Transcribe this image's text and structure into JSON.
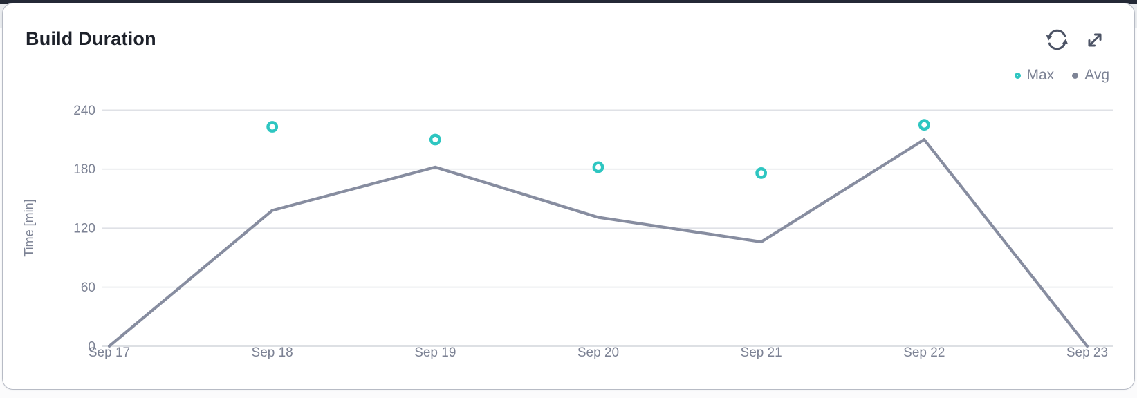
{
  "header": {
    "title": "Build Duration"
  },
  "toolbar": {
    "icons": [
      {
        "name": "refresh-icon"
      },
      {
        "name": "expand-icon"
      }
    ]
  },
  "legend": [
    {
      "label": "Max",
      "color": "#2ec6c1"
    },
    {
      "label": "Avg",
      "color": "#7e8496"
    }
  ],
  "chart_data": {
    "type": "line",
    "title": "Build Duration",
    "ylabel": "Time [min]",
    "categories": [
      "Sep 17",
      "Sep 18",
      "Sep 19",
      "Sep 20",
      "Sep 21",
      "Sep 22",
      "Sep 23"
    ],
    "series": [
      {
        "name": "Max",
        "style": "scatter",
        "color": "#2ec6c1",
        "values": [
          null,
          223,
          210,
          182,
          176,
          225,
          null
        ]
      },
      {
        "name": "Avg",
        "style": "line",
        "color": "#878da0",
        "values": [
          0,
          138,
          182,
          131,
          106,
          210,
          0
        ]
      }
    ],
    "yticks": [
      0,
      60,
      120,
      180,
      240
    ],
    "ylim": [
      0,
      255
    ],
    "grid": true,
    "legend_position": "top-right"
  },
  "colors": {
    "grid": "#dfe1e6",
    "axis": "#d2d5db",
    "tick_text": "#7c8294",
    "title_text": "#1d212a",
    "icon": "#4c5365",
    "max": "#2ec6c1",
    "avg": "#878da0"
  }
}
